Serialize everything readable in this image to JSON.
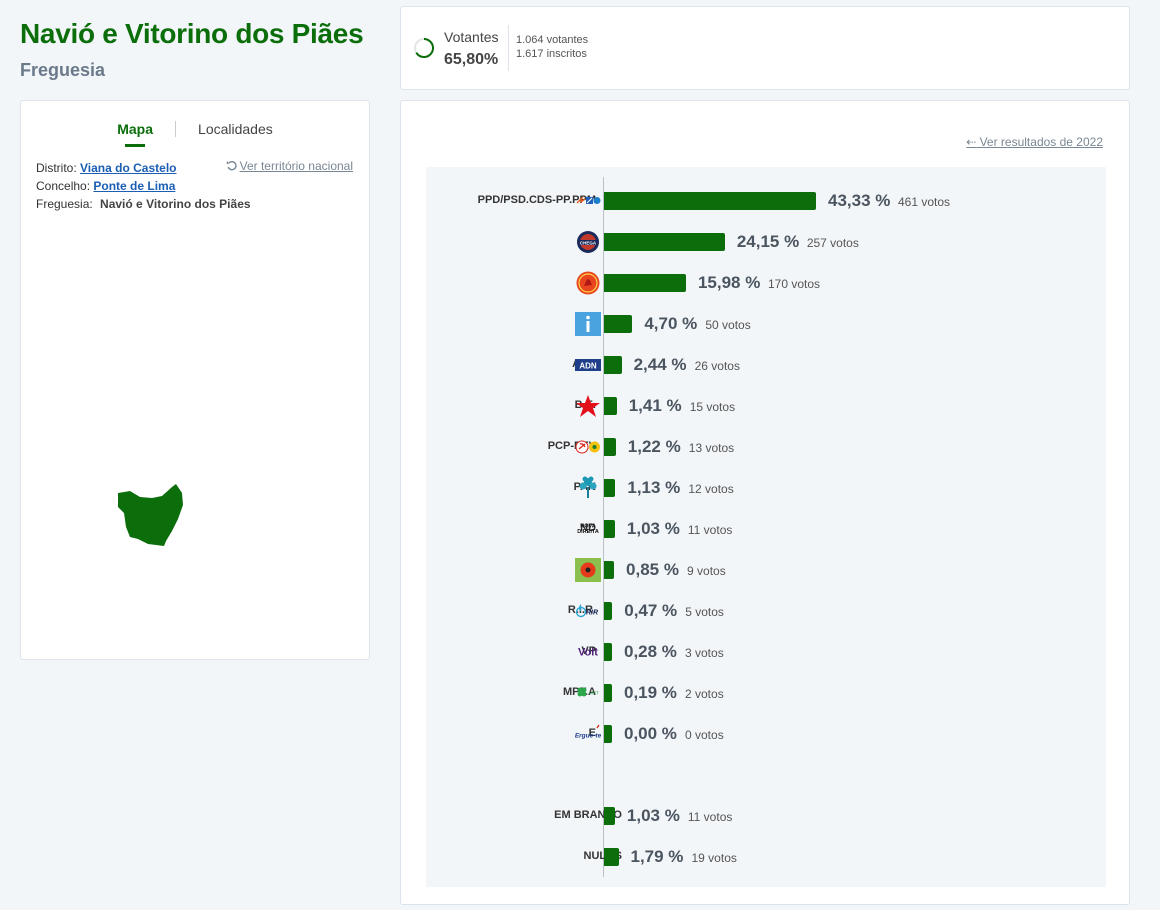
{
  "header": {
    "title": "Navió e Vitorino dos Piães",
    "subtitle": "Freguesia"
  },
  "tabs": [
    {
      "label": "Mapa",
      "active": true
    },
    {
      "label": "Localidades",
      "active": false
    }
  ],
  "location": {
    "distrito_label": "Distrito:",
    "distrito": "Viana do Castelo",
    "concelho_label": "Concelho:",
    "concelho": "Ponte de Lima",
    "freguesia_label": "Freguesia:",
    "freguesia": "Navió e Vitorino dos Piães",
    "national_link": "Ver território nacional"
  },
  "turnout": {
    "label": "Votantes",
    "percent": "65,80%",
    "fraction": 0.658,
    "votantes": "1.064 votantes",
    "inscritos": "1.617 inscritos"
  },
  "prev_results_link": "Ver resultados de 2022",
  "colors": {
    "accent": "#0b6e0b",
    "link": "#1a5fb4",
    "muted": "#7a8794"
  },
  "chart_data": {
    "type": "bar",
    "orientation": "horizontal",
    "categories": [
      "PPD/PSD.CDS-PP.PPM",
      "CH",
      "PS",
      "IL",
      "ADN",
      "B.E.",
      "PCP-PEV",
      "PAN",
      "ND",
      "L",
      "R.I.R.",
      "VP",
      "MPT.A",
      "E",
      "EM BRANCO",
      "NULOS"
    ],
    "values": [
      43.33,
      24.15,
      15.98,
      4.7,
      2.44,
      1.41,
      1.22,
      1.13,
      1.03,
      0.85,
      0.47,
      0.28,
      0.19,
      0.0,
      1.03,
      1.79
    ],
    "unit": "%",
    "rows": [
      {
        "name": "PPD/PSD.CDS-PP.PPM",
        "pct": "43,33 %",
        "votes": "461 votos",
        "value": 43.33,
        "logo": "ad-logo"
      },
      {
        "name": "CH",
        "pct": "24,15 %",
        "votes": "257 votos",
        "value": 24.15,
        "logo": "chega-logo"
      },
      {
        "name": "PS",
        "pct": "15,98 %",
        "votes": "170 votos",
        "value": 15.98,
        "logo": "ps-logo"
      },
      {
        "name": "IL",
        "pct": "4,70 %",
        "votes": "50 votos",
        "value": 4.7,
        "logo": "il-logo"
      },
      {
        "name": "ADN",
        "pct": "2,44 %",
        "votes": "26 votos",
        "value": 2.44,
        "logo": "adn-logo"
      },
      {
        "name": "B.E.",
        "pct": "1,41 %",
        "votes": "15 votos",
        "value": 1.41,
        "logo": "be-star-logo"
      },
      {
        "name": "PCP-PEV",
        "pct": "1,22 %",
        "votes": "13 votos",
        "value": 1.22,
        "logo": "cdu-logo"
      },
      {
        "name": "PAN",
        "pct": "1,13 %",
        "votes": "12 votos",
        "value": 1.13,
        "logo": "pan-tree-logo"
      },
      {
        "name": "ND",
        "pct": "1,03 %",
        "votes": "11 votos",
        "value": 1.03,
        "logo": "nd-logo",
        "logo_text": "NOVA DIREITA"
      },
      {
        "name": "L",
        "pct": "0,85 %",
        "votes": "9 votos",
        "value": 0.85,
        "logo": "livre-poppy-logo"
      },
      {
        "name": "R.I.R.",
        "pct": "0,47 %",
        "votes": "5 votos",
        "value": 0.47,
        "logo": "rir-logo",
        "logo_text": "RIR"
      },
      {
        "name": "VP",
        "pct": "0,28 %",
        "votes": "3 votos",
        "value": 0.28,
        "logo": "volt-logo",
        "logo_text": "Volt"
      },
      {
        "name": "MPT.A",
        "pct": "0,19 %",
        "votes": "2 votos",
        "value": 0.19,
        "logo": "mpt-clover-logo"
      },
      {
        "name": "E",
        "pct": "0,00 %",
        "votes": "0 votos",
        "value": 0.0,
        "logo": "ergue-te-logo",
        "logo_text": "Ergue-te"
      },
      {
        "name": "EM BRANCO",
        "pct": "1,03 %",
        "votes": "11 votos",
        "value": 1.03,
        "logo": ""
      },
      {
        "name": "NULOS",
        "pct": "1,79 %",
        "votes": "19 votos",
        "value": 1.79,
        "logo": ""
      }
    ]
  }
}
